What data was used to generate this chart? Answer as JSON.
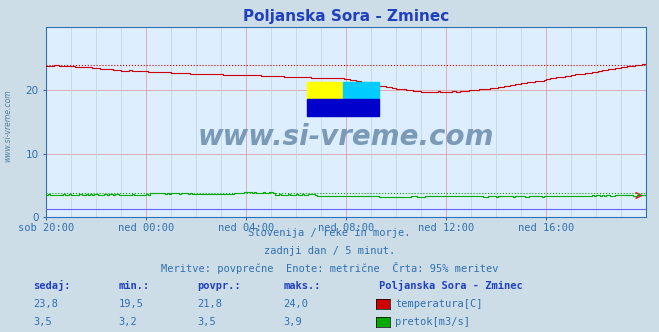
{
  "title": "Poljanska Sora - Zminec",
  "bg_color": "#ccdde8",
  "plot_bg_color": "#ddeeff",
  "grid_color": "#b8ccd8",
  "grid_color_red": "#e8b8c0",
  "title_color": "#2040c0",
  "axis_label_color": "#3070b0",
  "text_color": "#3070b0",
  "x_tick_labels": [
    "sob 20:00",
    "ned 00:00",
    "ned 04:00",
    "ned 08:00",
    "ned 12:00",
    "ned 16:00"
  ],
  "x_tick_positions": [
    0,
    48,
    96,
    144,
    192,
    240
  ],
  "y_ticks": [
    0,
    10,
    20
  ],
  "ylim": [
    0,
    30
  ],
  "xlim": [
    0,
    288
  ],
  "temp_color": "#cc0000",
  "flow_color": "#00aa00",
  "height_color": "#6666ff",
  "watermark_text": "www.si-vreme.com",
  "watermark_color": "#7a9ab8",
  "footer_line1": "Slovenija / reke in morje.",
  "footer_line2": "zadnji dan / 5 minut.",
  "footer_line3": "Meritve: povprečne  Enote: metrične  Črta: 95% meritev",
  "legend_title": "Poljanska Sora - Zminec",
  "legend_items": [
    {
      "label": "temperatura[C]",
      "color": "#cc0000"
    },
    {
      "label": "pretok[m3/s]",
      "color": "#00aa00"
    }
  ],
  "table_headers": [
    "sedaj:",
    "min.:",
    "povpr.:",
    "maks.:"
  ],
  "table_data": [
    [
      "23,8",
      "19,5",
      "21,8",
      "24,0"
    ],
    [
      "3,5",
      "3,2",
      "3,5",
      "3,9"
    ]
  ]
}
